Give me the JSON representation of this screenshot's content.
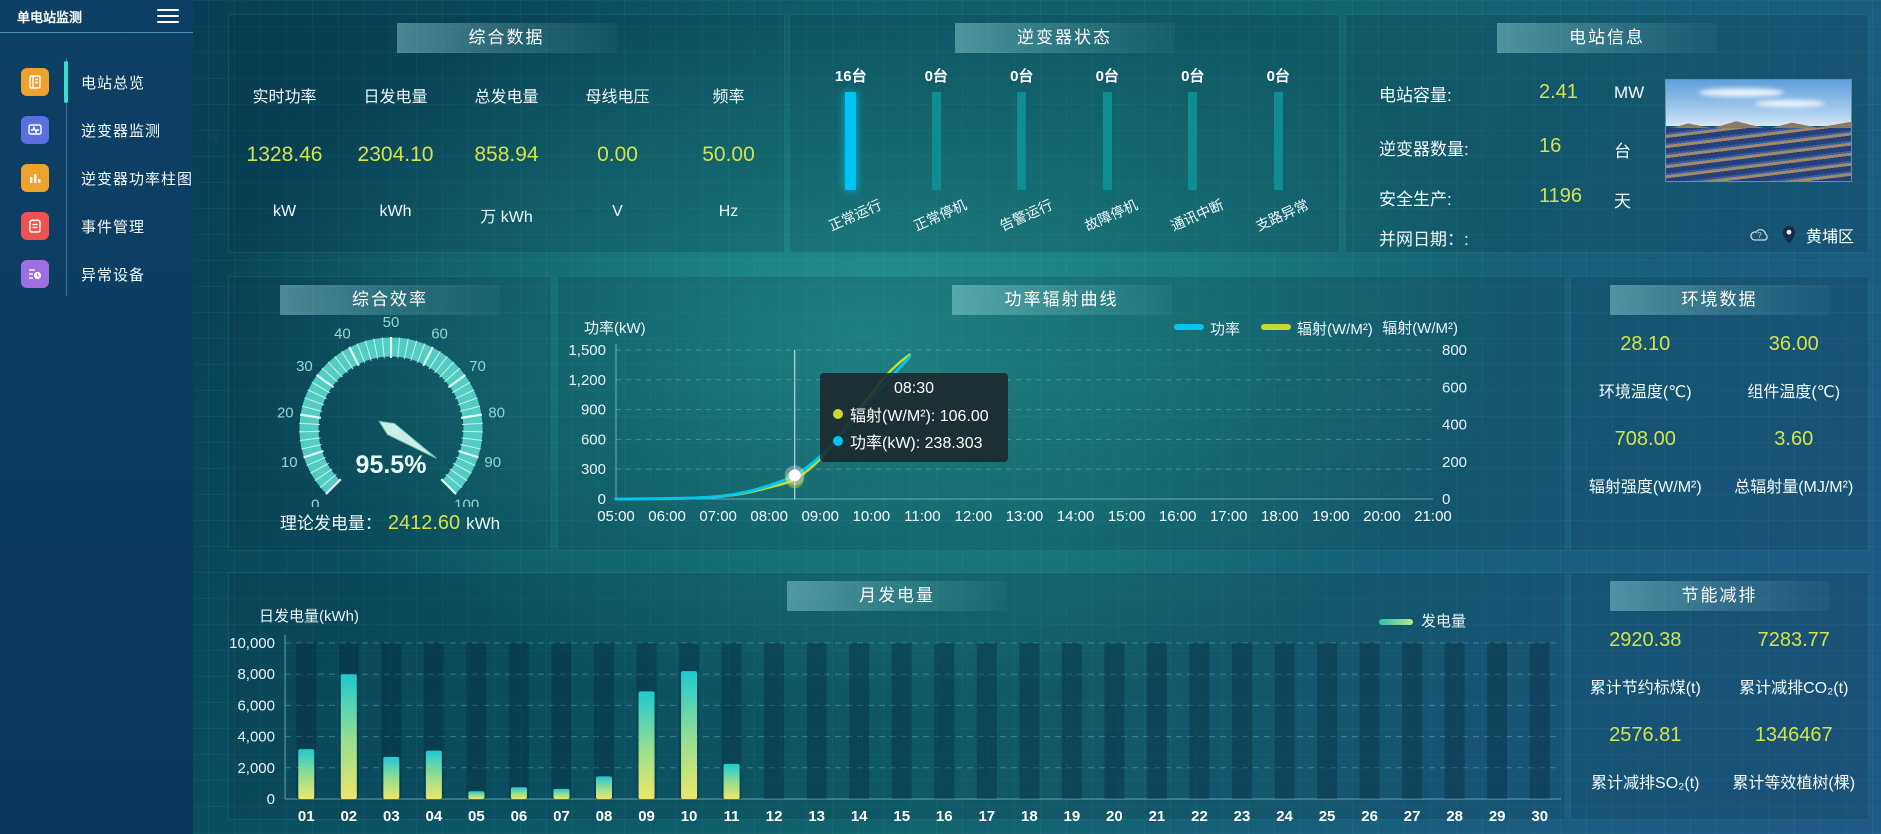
{
  "app": {
    "title": "单电站监测"
  },
  "sidebar": {
    "items": [
      {
        "label": "电站总览",
        "active": true
      },
      {
        "label": "逆变器监测",
        "active": false
      },
      {
        "label": "逆变器功率柱图",
        "active": false
      },
      {
        "label": "事件管理",
        "active": false
      },
      {
        "label": "异常设备",
        "active": false
      }
    ]
  },
  "panels": {
    "summary": {
      "title": "综合数据"
    },
    "inverter": {
      "title": "逆变器状态"
    },
    "station": {
      "title": "电站信息"
    },
    "efficiency": {
      "title": "综合效率"
    },
    "curve": {
      "title": "功率辐射曲线"
    },
    "environment": {
      "title": "环境数据"
    },
    "monthly": {
      "title": "月发电量"
    },
    "saving": {
      "title": "节能减排"
    }
  },
  "summary": {
    "stats": [
      {
        "label": "实时功率",
        "value": "1328.46",
        "unit": "kW"
      },
      {
        "label": "日发电量",
        "value": "2304.10",
        "unit": "kWh"
      },
      {
        "label": "总发电量",
        "value": "858.94",
        "unit": "万  kWh"
      },
      {
        "label": "母线电压",
        "value": "0.00",
        "unit": "V"
      },
      {
        "label": "频率",
        "value": "50.00",
        "unit": "Hz"
      }
    ]
  },
  "station": {
    "rows": [
      {
        "label": "电站容量:",
        "value": "2.41",
        "unit": "MW"
      },
      {
        "label": "逆变器数量:",
        "value": "16",
        "unit": "台"
      },
      {
        "label": "安全生产:",
        "value": "1196",
        "unit": "天"
      },
      {
        "label": "并网日期：:",
        "value": "",
        "unit": ""
      }
    ],
    "location": "黄埔区"
  },
  "efficiency": {
    "footer_label": "理论发电量：",
    "footer_value": "2412.60",
    "footer_unit": "kWh"
  },
  "environment": {
    "cells": [
      {
        "value": "28.10",
        "label": "环境温度(℃)"
      },
      {
        "value": "36.00",
        "label": "组件温度(℃)"
      },
      {
        "value": "708.00",
        "label": "辐射强度(W/M²)"
      },
      {
        "value": "3.60",
        "label": "总辐射量(MJ/M²)"
      }
    ]
  },
  "saving": {
    "cells": [
      {
        "value": "2920.38",
        "label": "累计节约标煤(t)"
      },
      {
        "value": "7283.77",
        "label": "累计减排CO₂(t)"
      },
      {
        "value": "2576.81",
        "label": "累计减排SO₂(t)"
      },
      {
        "value": "1346467",
        "label": "累计等效植树(棵)"
      }
    ]
  },
  "colors": {
    "value_yellow": "#d3e34a",
    "bar_active": "#00c3f5",
    "bar_idle": "#0e8e93",
    "gauge_arc": "#56d4c6",
    "power_line": "#00c6f0",
    "radiation_line": "#c8d832"
  },
  "chart_data": [
    {
      "id": "inverter_status",
      "type": "bar",
      "title": "逆变器状态",
      "categories": [
        "正常运行",
        "正常停机",
        "告警运行",
        "故障停机",
        "通讯中断",
        "支路异常"
      ],
      "values": [
        16,
        0,
        0,
        0,
        0,
        0
      ],
      "unit": "台",
      "bar_colors": [
        "#00c3f5",
        "#0e8e93",
        "#0e8e93",
        "#0e8e93",
        "#0e8e93",
        "#0e8e93"
      ]
    },
    {
      "id": "efficiency_gauge",
      "type": "gauge",
      "title": "综合效率",
      "value": 95.5,
      "display": "95.5%",
      "min": 0,
      "max": 100,
      "tick_labels": [
        0,
        10,
        20,
        30,
        40,
        50,
        60,
        70,
        80,
        90,
        100
      ]
    },
    {
      "id": "power_radiation",
      "type": "line",
      "title": "功率辐射曲线",
      "ylabel_left": "功率(kW)",
      "ylabel_right": "辐射(W/M²)",
      "ylim_left": [
        0,
        1500
      ],
      "yticks_left": [
        0,
        300,
        600,
        900,
        1200,
        1500
      ],
      "ylim_right": [
        0,
        800
      ],
      "yticks_right": [
        0,
        200,
        400,
        600,
        800
      ],
      "x_labels": [
        "05:00",
        "06:00",
        "07:00",
        "08:00",
        "09:00",
        "10:00",
        "11:00",
        "12:00",
        "13:00",
        "14:00",
        "15:00",
        "16:00",
        "17:00",
        "18:00",
        "19:00",
        "20:00",
        "21:00"
      ],
      "x_range_hours": [
        5,
        21
      ],
      "series": [
        {
          "name": "功率",
          "color": "#00c6f0",
          "axis": "left",
          "points": [
            [
              5,
              0
            ],
            [
              5.5,
              1
            ],
            [
              6,
              4
            ],
            [
              6.5,
              10
            ],
            [
              7,
              25
            ],
            [
              7.5,
              65
            ],
            [
              8,
              135
            ],
            [
              8.5,
              238.303
            ],
            [
              9,
              430
            ],
            [
              9.5,
              720
            ],
            [
              10,
              1020
            ],
            [
              10.25,
              1150
            ],
            [
              10.5,
              1290
            ],
            [
              10.75,
              1430
            ]
          ]
        },
        {
          "name": "辐射(W/M²)",
          "color": "#c8d832",
          "axis": "right",
          "points": [
            [
              5,
              0
            ],
            [
              5.5,
              1
            ],
            [
              6,
              2
            ],
            [
              6.5,
              5
            ],
            [
              7,
              12
            ],
            [
              7.5,
              30
            ],
            [
              8,
              62
            ],
            [
              8.5,
              106
            ],
            [
              9,
              215
            ],
            [
              9.5,
              390
            ],
            [
              10,
              565
            ],
            [
              10.25,
              650
            ],
            [
              10.5,
              720
            ],
            [
              10.75,
              775
            ]
          ]
        }
      ],
      "marker_hour": 8.5,
      "tooltip": {
        "title": "08:30",
        "rows": [
          {
            "color": "#c8d832",
            "label": "辐射(W/M²)",
            "value": "106.00"
          },
          {
            "color": "#00c6f0",
            "label": "功率(kW)",
            "value": "238.303"
          }
        ]
      }
    },
    {
      "id": "monthly_generation",
      "type": "bar",
      "title": "月发电量",
      "ylabel": "日发电量(kWh)",
      "ylim": [
        0,
        10000
      ],
      "yticks": [
        0,
        2000,
        4000,
        6000,
        8000,
        10000
      ],
      "legend": [
        "发电量"
      ],
      "categories": [
        "01",
        "02",
        "03",
        "04",
        "05",
        "06",
        "07",
        "08",
        "09",
        "10",
        "11",
        "12",
        "13",
        "14",
        "15",
        "16",
        "17",
        "18",
        "19",
        "20",
        "21",
        "22",
        "23",
        "24",
        "25",
        "26",
        "27",
        "28",
        "29",
        "30"
      ],
      "values": [
        3200,
        8000,
        2700,
        3100,
        500,
        750,
        650,
        1450,
        6900,
        8200,
        2250,
        0,
        0,
        0,
        0,
        0,
        0,
        0,
        0,
        0,
        0,
        0,
        0,
        0,
        0,
        0,
        0,
        0,
        0,
        0
      ]
    }
  ]
}
